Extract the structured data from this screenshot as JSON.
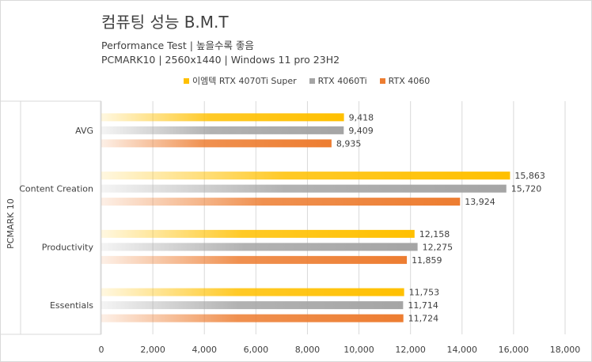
{
  "chart_data": {
    "type": "bar",
    "orientation": "horizontal",
    "title": "컴퓨팅 성능 B.M.T",
    "subtitle_lines": [
      "Performance Test | 높을수록 좋음",
      "PCMARK10 | 2560x1440 | Windows 11 pro 23H2"
    ],
    "ylabel": "PCMARK 10",
    "xlabel": "",
    "categories": [
      "AVG",
      "Content Creation",
      "Productivity",
      "Essentials"
    ],
    "series": [
      {
        "name": "이엠텍 RTX 4070Ti Super",
        "color": "#ffc000",
        "values": [
          9418,
          15863,
          12158,
          11753
        ],
        "labels": [
          "9,418",
          "15,863",
          "12,158",
          "11,753"
        ]
      },
      {
        "name": "RTX 4060Ti",
        "color": "#a5a5a5",
        "values": [
          9409,
          15720,
          12275,
          11714
        ],
        "labels": [
          "9,409",
          "15,720",
          "12,275",
          "11,714"
        ]
      },
      {
        "name": "RTX 4060",
        "color": "#ed7d31",
        "values": [
          8935,
          13924,
          11859,
          11724
        ],
        "labels": [
          "8,935",
          "13,924",
          "11,859",
          "11,724"
        ]
      }
    ],
    "xlim": [
      0,
      18000
    ],
    "x_ticks": [
      0,
      2000,
      4000,
      6000,
      8000,
      10000,
      12000,
      14000,
      16000,
      18000
    ],
    "x_tick_labels": [
      "0",
      "2,000",
      "4,000",
      "6,000",
      "8,000",
      "10,000",
      "12,000",
      "14,000",
      "16,000",
      "18,000"
    ],
    "grid": "vertical",
    "legend_position": "top"
  }
}
